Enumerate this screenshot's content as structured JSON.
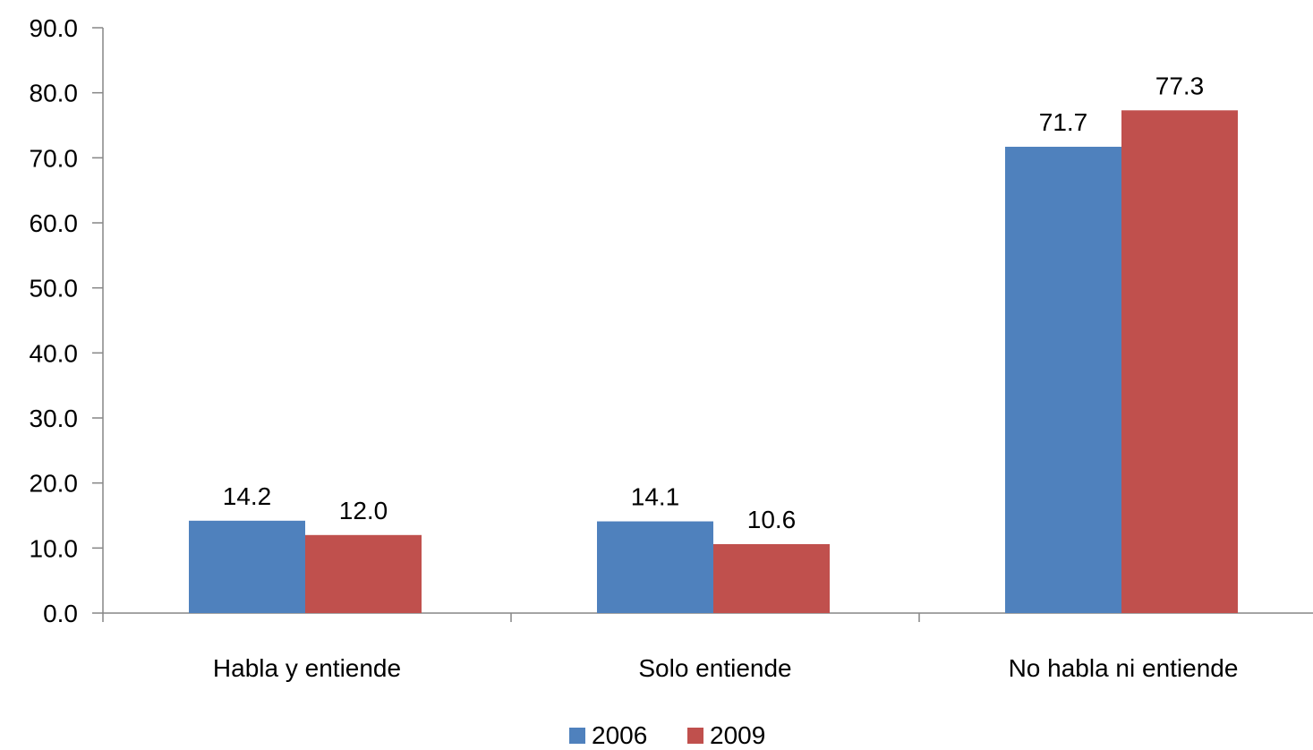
{
  "chart_data": {
    "type": "bar",
    "categories": [
      "Habla y entiende",
      "Solo entiende",
      "No habla ni entiende"
    ],
    "series": [
      {
        "name": "2006",
        "values": [
          14.2,
          14.1,
          71.7
        ],
        "color": "#4F81BD"
      },
      {
        "name": "2009",
        "values": [
          12.0,
          10.6,
          77.3
        ],
        "color": "#C0504D"
      }
    ],
    "value_labels": [
      [
        "14.2",
        "14.1",
        "71.7"
      ],
      [
        "12.0",
        "10.6",
        "77.3"
      ]
    ],
    "yticks": [
      "0.0",
      "10.0",
      "20.0",
      "30.0",
      "40.0",
      "50.0",
      "60.0",
      "70.0",
      "80.0",
      "90.0"
    ],
    "ylim": [
      0,
      90
    ],
    "grid": false,
    "legend_position": "bottom",
    "title": "",
    "xlabel": "",
    "ylabel": ""
  }
}
